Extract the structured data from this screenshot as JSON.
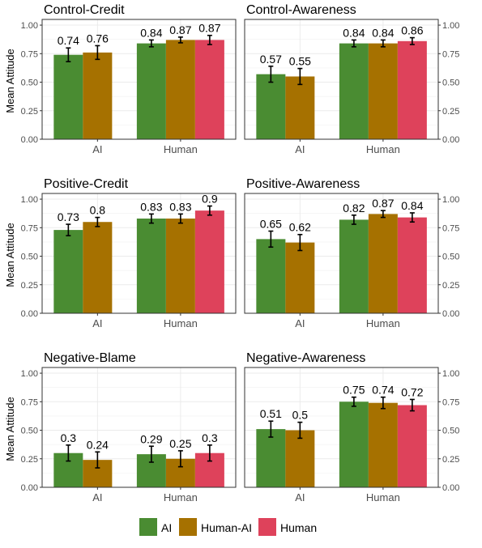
{
  "chart_data": {
    "type": "bar",
    "ylabel": "Mean Attitude",
    "ylim": [
      0,
      1.05
    ],
    "yticks": [
      "0.00",
      "0.25",
      "0.50",
      "0.75",
      "1.00"
    ],
    "groups": [
      "AI",
      "Human"
    ],
    "legend": {
      "position": "bottom",
      "entries": [
        {
          "name": "AI",
          "color": "#4a8c32"
        },
        {
          "name": "Human-AI",
          "color": "#a67100"
        },
        {
          "name": "Human",
          "color": "#de425b"
        }
      ]
    },
    "grid": true,
    "panels": [
      {
        "title": "Control-Credit",
        "bars": [
          {
            "group": "AI",
            "series": "AI",
            "value": 0.74,
            "label": "0.74",
            "err": 0.06
          },
          {
            "group": "AI",
            "series": "Human-AI",
            "value": 0.76,
            "label": "0.76",
            "err": 0.06
          },
          {
            "group": "Human",
            "series": "AI",
            "value": 0.84,
            "label": "0.84",
            "err": 0.03
          },
          {
            "group": "Human",
            "series": "Human-AI",
            "value": 0.87,
            "label": "0.87",
            "err": 0.025
          },
          {
            "group": "Human",
            "series": "Human",
            "value": 0.87,
            "label": "0.87",
            "err": 0.04
          }
        ]
      },
      {
        "title": "Control-Awareness",
        "bars": [
          {
            "group": "AI",
            "series": "AI",
            "value": 0.57,
            "label": "0.57",
            "err": 0.07
          },
          {
            "group": "AI",
            "series": "Human-AI",
            "value": 0.55,
            "label": "0.55",
            "err": 0.07
          },
          {
            "group": "Human",
            "series": "AI",
            "value": 0.84,
            "label": "0.84",
            "err": 0.03
          },
          {
            "group": "Human",
            "series": "Human-AI",
            "value": 0.84,
            "label": "0.84",
            "err": 0.03
          },
          {
            "group": "Human",
            "series": "Human",
            "value": 0.86,
            "label": "0.86",
            "err": 0.03
          }
        ]
      },
      {
        "title": "Positive-Credit",
        "bars": [
          {
            "group": "AI",
            "series": "AI",
            "value": 0.73,
            "label": "0.73",
            "err": 0.05
          },
          {
            "group": "AI",
            "series": "Human-AI",
            "value": 0.8,
            "label": "0.8",
            "err": 0.04
          },
          {
            "group": "Human",
            "series": "AI",
            "value": 0.83,
            "label": "0.83",
            "err": 0.04
          },
          {
            "group": "Human",
            "series": "Human-AI",
            "value": 0.83,
            "label": "0.83",
            "err": 0.04
          },
          {
            "group": "Human",
            "series": "Human",
            "value": 0.9,
            "label": "0.9",
            "err": 0.04
          }
        ]
      },
      {
        "title": "Positive-Awareness",
        "bars": [
          {
            "group": "AI",
            "series": "AI",
            "value": 0.65,
            "label": "0.65",
            "err": 0.07
          },
          {
            "group": "AI",
            "series": "Human-AI",
            "value": 0.62,
            "label": "0.62",
            "err": 0.07
          },
          {
            "group": "Human",
            "series": "AI",
            "value": 0.82,
            "label": "0.82",
            "err": 0.04
          },
          {
            "group": "Human",
            "series": "Human-AI",
            "value": 0.87,
            "label": "0.87",
            "err": 0.03
          },
          {
            "group": "Human",
            "series": "Human",
            "value": 0.84,
            "label": "0.84",
            "err": 0.04
          }
        ]
      },
      {
        "title": "Negative-Blame",
        "bars": [
          {
            "group": "AI",
            "series": "AI",
            "value": 0.3,
            "label": "0.3",
            "err": 0.07
          },
          {
            "group": "AI",
            "series": "Human-AI",
            "value": 0.24,
            "label": "0.24",
            "err": 0.07
          },
          {
            "group": "Human",
            "series": "AI",
            "value": 0.29,
            "label": "0.29",
            "err": 0.07
          },
          {
            "group": "Human",
            "series": "Human-AI",
            "value": 0.25,
            "label": "0.25",
            "err": 0.07
          },
          {
            "group": "Human",
            "series": "Human",
            "value": 0.3,
            "label": "0.3",
            "err": 0.07
          }
        ]
      },
      {
        "title": "Negative-Awareness",
        "bars": [
          {
            "group": "AI",
            "series": "AI",
            "value": 0.51,
            "label": "0.51",
            "err": 0.07
          },
          {
            "group": "AI",
            "series": "Human-AI",
            "value": 0.5,
            "label": "0.5",
            "err": 0.07
          },
          {
            "group": "Human",
            "series": "AI",
            "value": 0.75,
            "label": "0.75",
            "err": 0.04
          },
          {
            "group": "Human",
            "series": "Human-AI",
            "value": 0.74,
            "label": "0.74",
            "err": 0.05
          },
          {
            "group": "Human",
            "series": "Human",
            "value": 0.72,
            "label": "0.72",
            "err": 0.05
          }
        ]
      }
    ]
  }
}
